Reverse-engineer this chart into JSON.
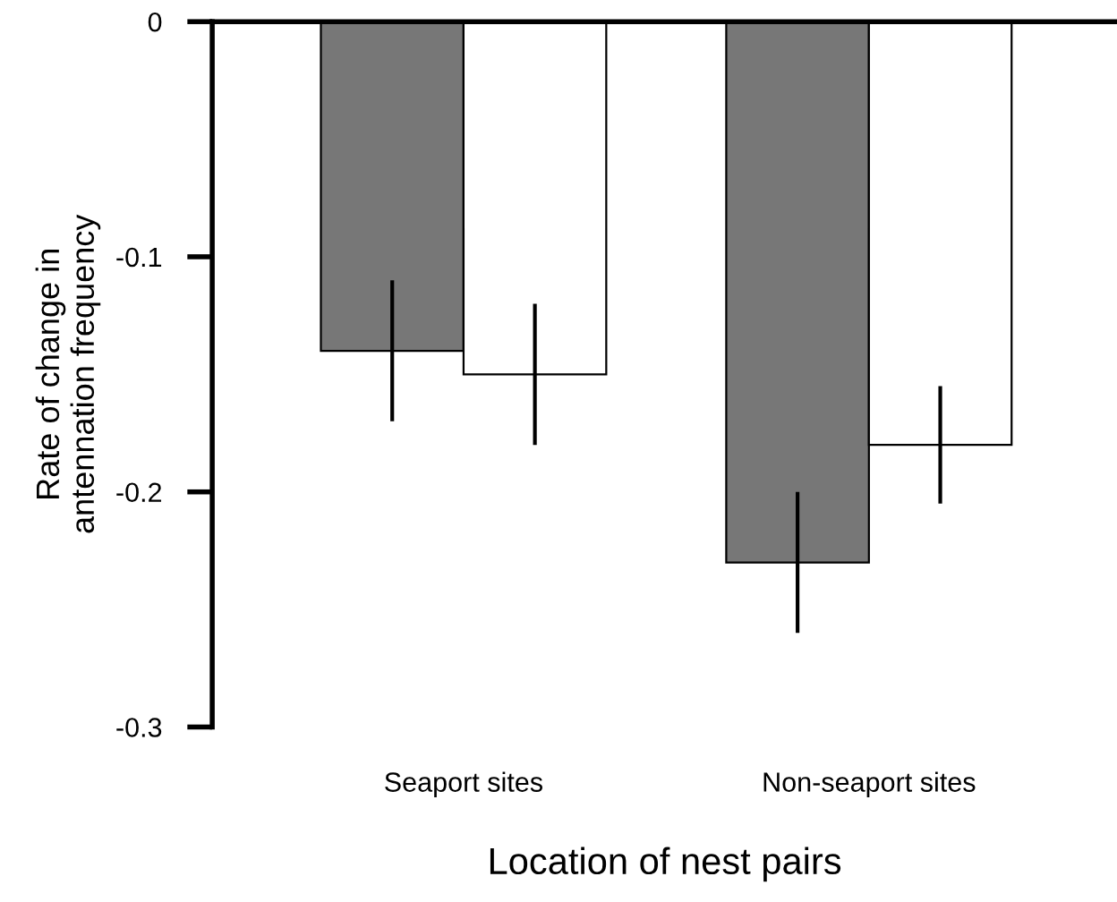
{
  "chart_data": {
    "type": "bar",
    "xlabel": "Location of nest pairs",
    "ylabel": "Rate of change in\nantennation frequency",
    "categories": [
      "Seaport sites",
      "Non-seaport sites"
    ],
    "series": [
      {
        "color": "#777777",
        "values": [
          -0.14,
          -0.23
        ],
        "errors": [
          0.03,
          0.03
        ]
      },
      {
        "color": "#ffffff",
        "values": [
          -0.15,
          -0.18
        ],
        "errors": [
          0.03,
          0.025
        ]
      }
    ],
    "ylim": [
      -0.3,
      0
    ],
    "yticks": [
      {
        "value": 0,
        "label": "0"
      },
      -0.1,
      -0.2,
      -0.3
    ],
    "grid": false,
    "legend": false
  }
}
